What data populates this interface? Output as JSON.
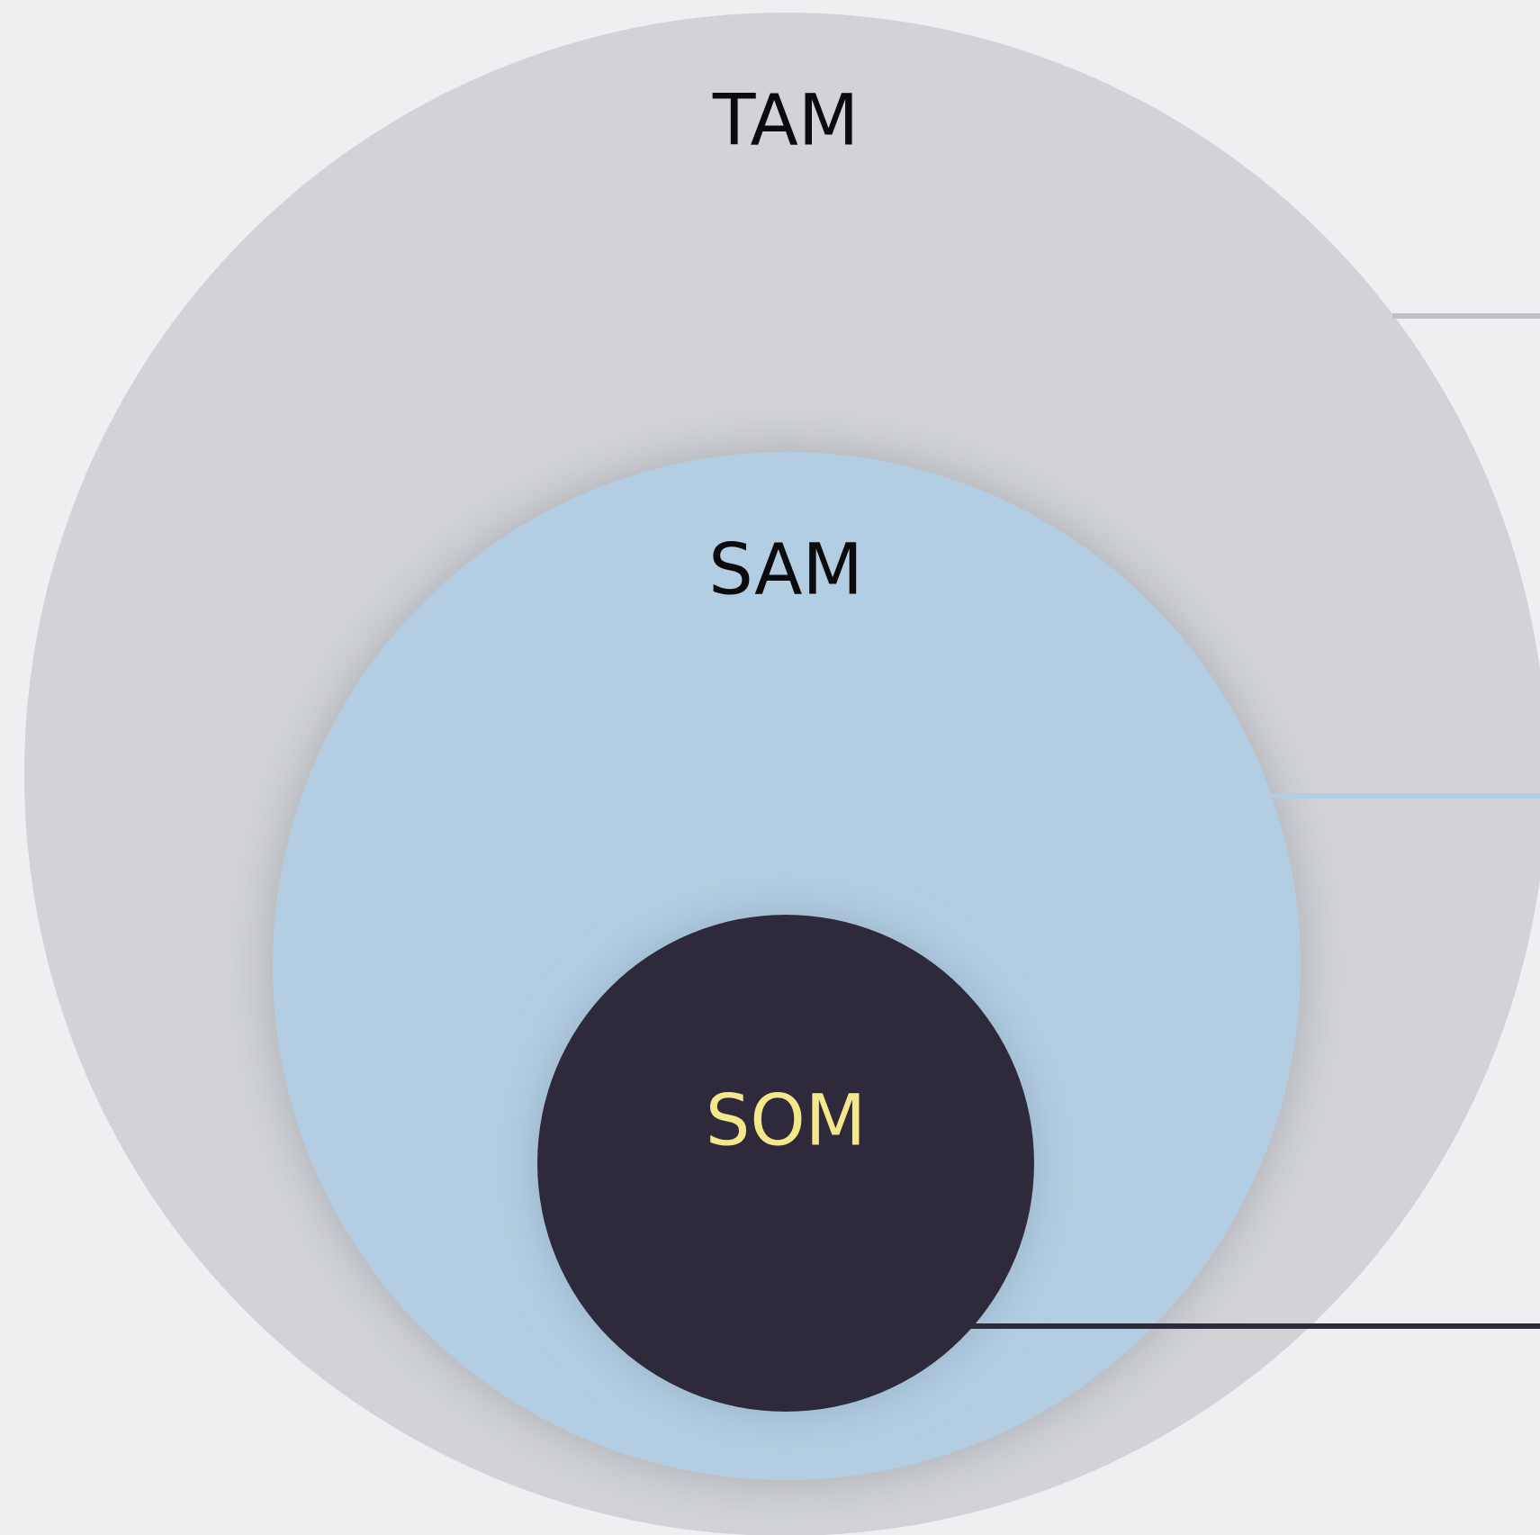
{
  "circles": [
    {
      "label": "TAM"
    },
    {
      "label": "SAM"
    },
    {
      "label": "SOM"
    }
  ]
}
